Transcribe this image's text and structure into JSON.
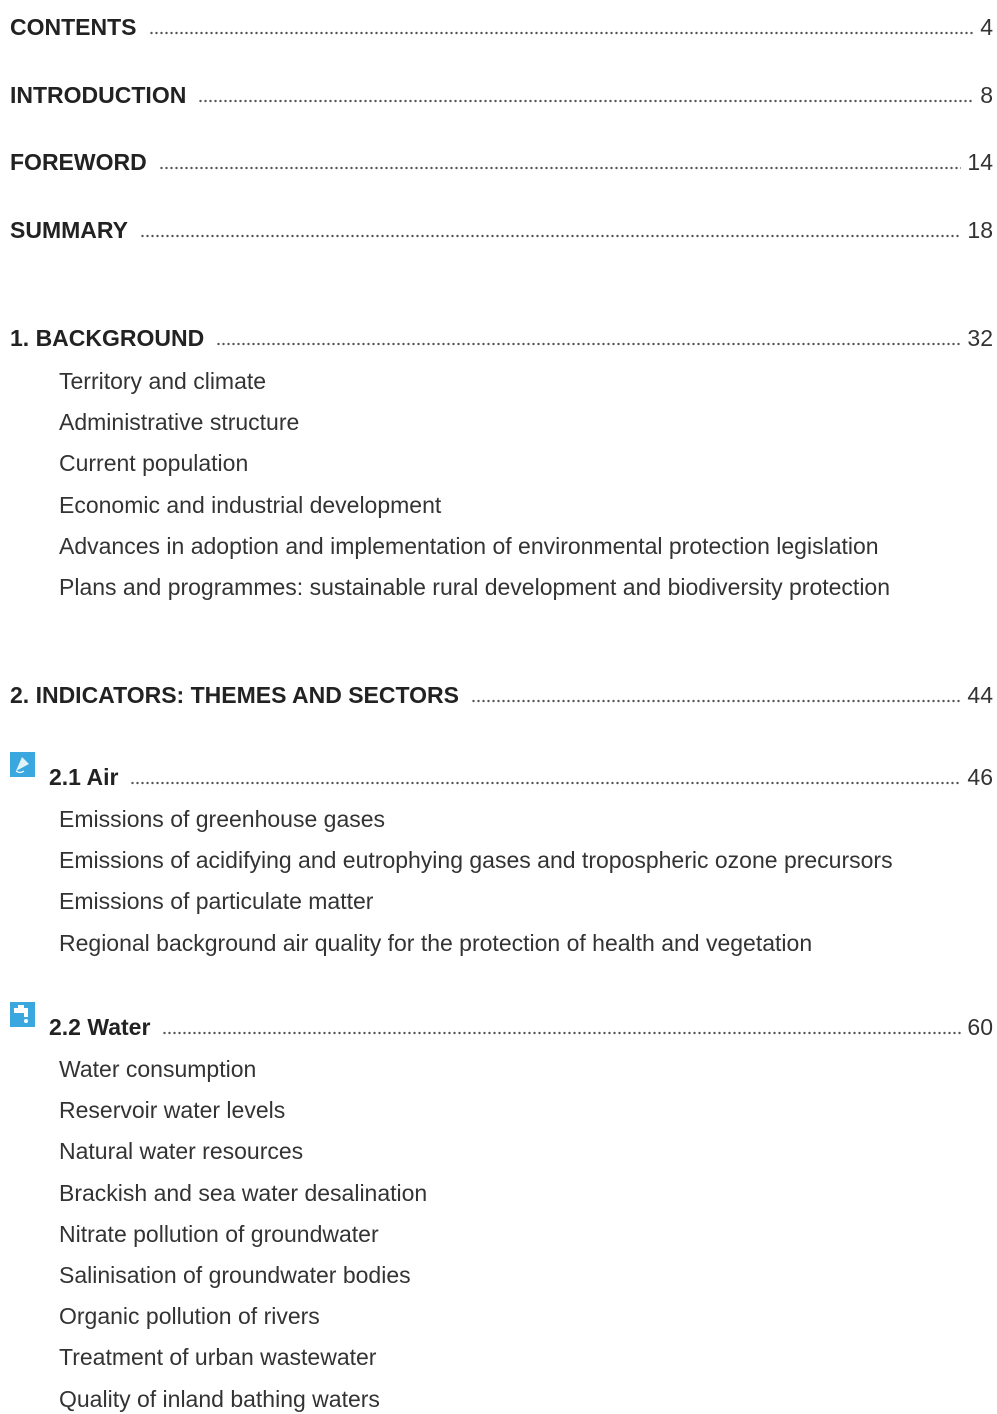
{
  "entries": [
    {
      "title": "CONTENTS",
      "page": 4
    },
    {
      "title": "INTRODUCTION",
      "page": 8
    },
    {
      "title": "FOREWORD",
      "page": 14
    },
    {
      "title": "SUMMARY",
      "page": 18
    },
    {
      "title": "1. BACKGROUND",
      "page": 32,
      "items": [
        "Territory and climate",
        "Administrative structure",
        "Current population",
        "Economic and industrial development",
        "Advances in adoption and implementation of environmental protection legislation",
        "Plans and programmes: sustainable rural development and biodiversity protection"
      ]
    },
    {
      "title": "2. INDICATORS: THEMES AND SECTORS",
      "page": 44
    },
    {
      "title": "2.1 Air",
      "page": 46,
      "items": [
        "Emissions of greenhouse gases",
        "Emissions of acidifying and eutrophying gases and tropospheric ozone precursors",
        "Emissions of particulate matter",
        "Regional background air quality for the protection of health and vegetation"
      ]
    },
    {
      "title": "2.2 Water",
      "page": 60,
      "items": [
        "Water consumption",
        "Reservoir water levels",
        "Natural water resources",
        "Brackish and sea water desalination",
        "Nitrate pollution of groundwater",
        "Salinisation of groundwater bodies",
        "Organic pollution of rivers",
        "Treatment of urban wastewater",
        "Quality of inland bathing waters"
      ]
    }
  ]
}
